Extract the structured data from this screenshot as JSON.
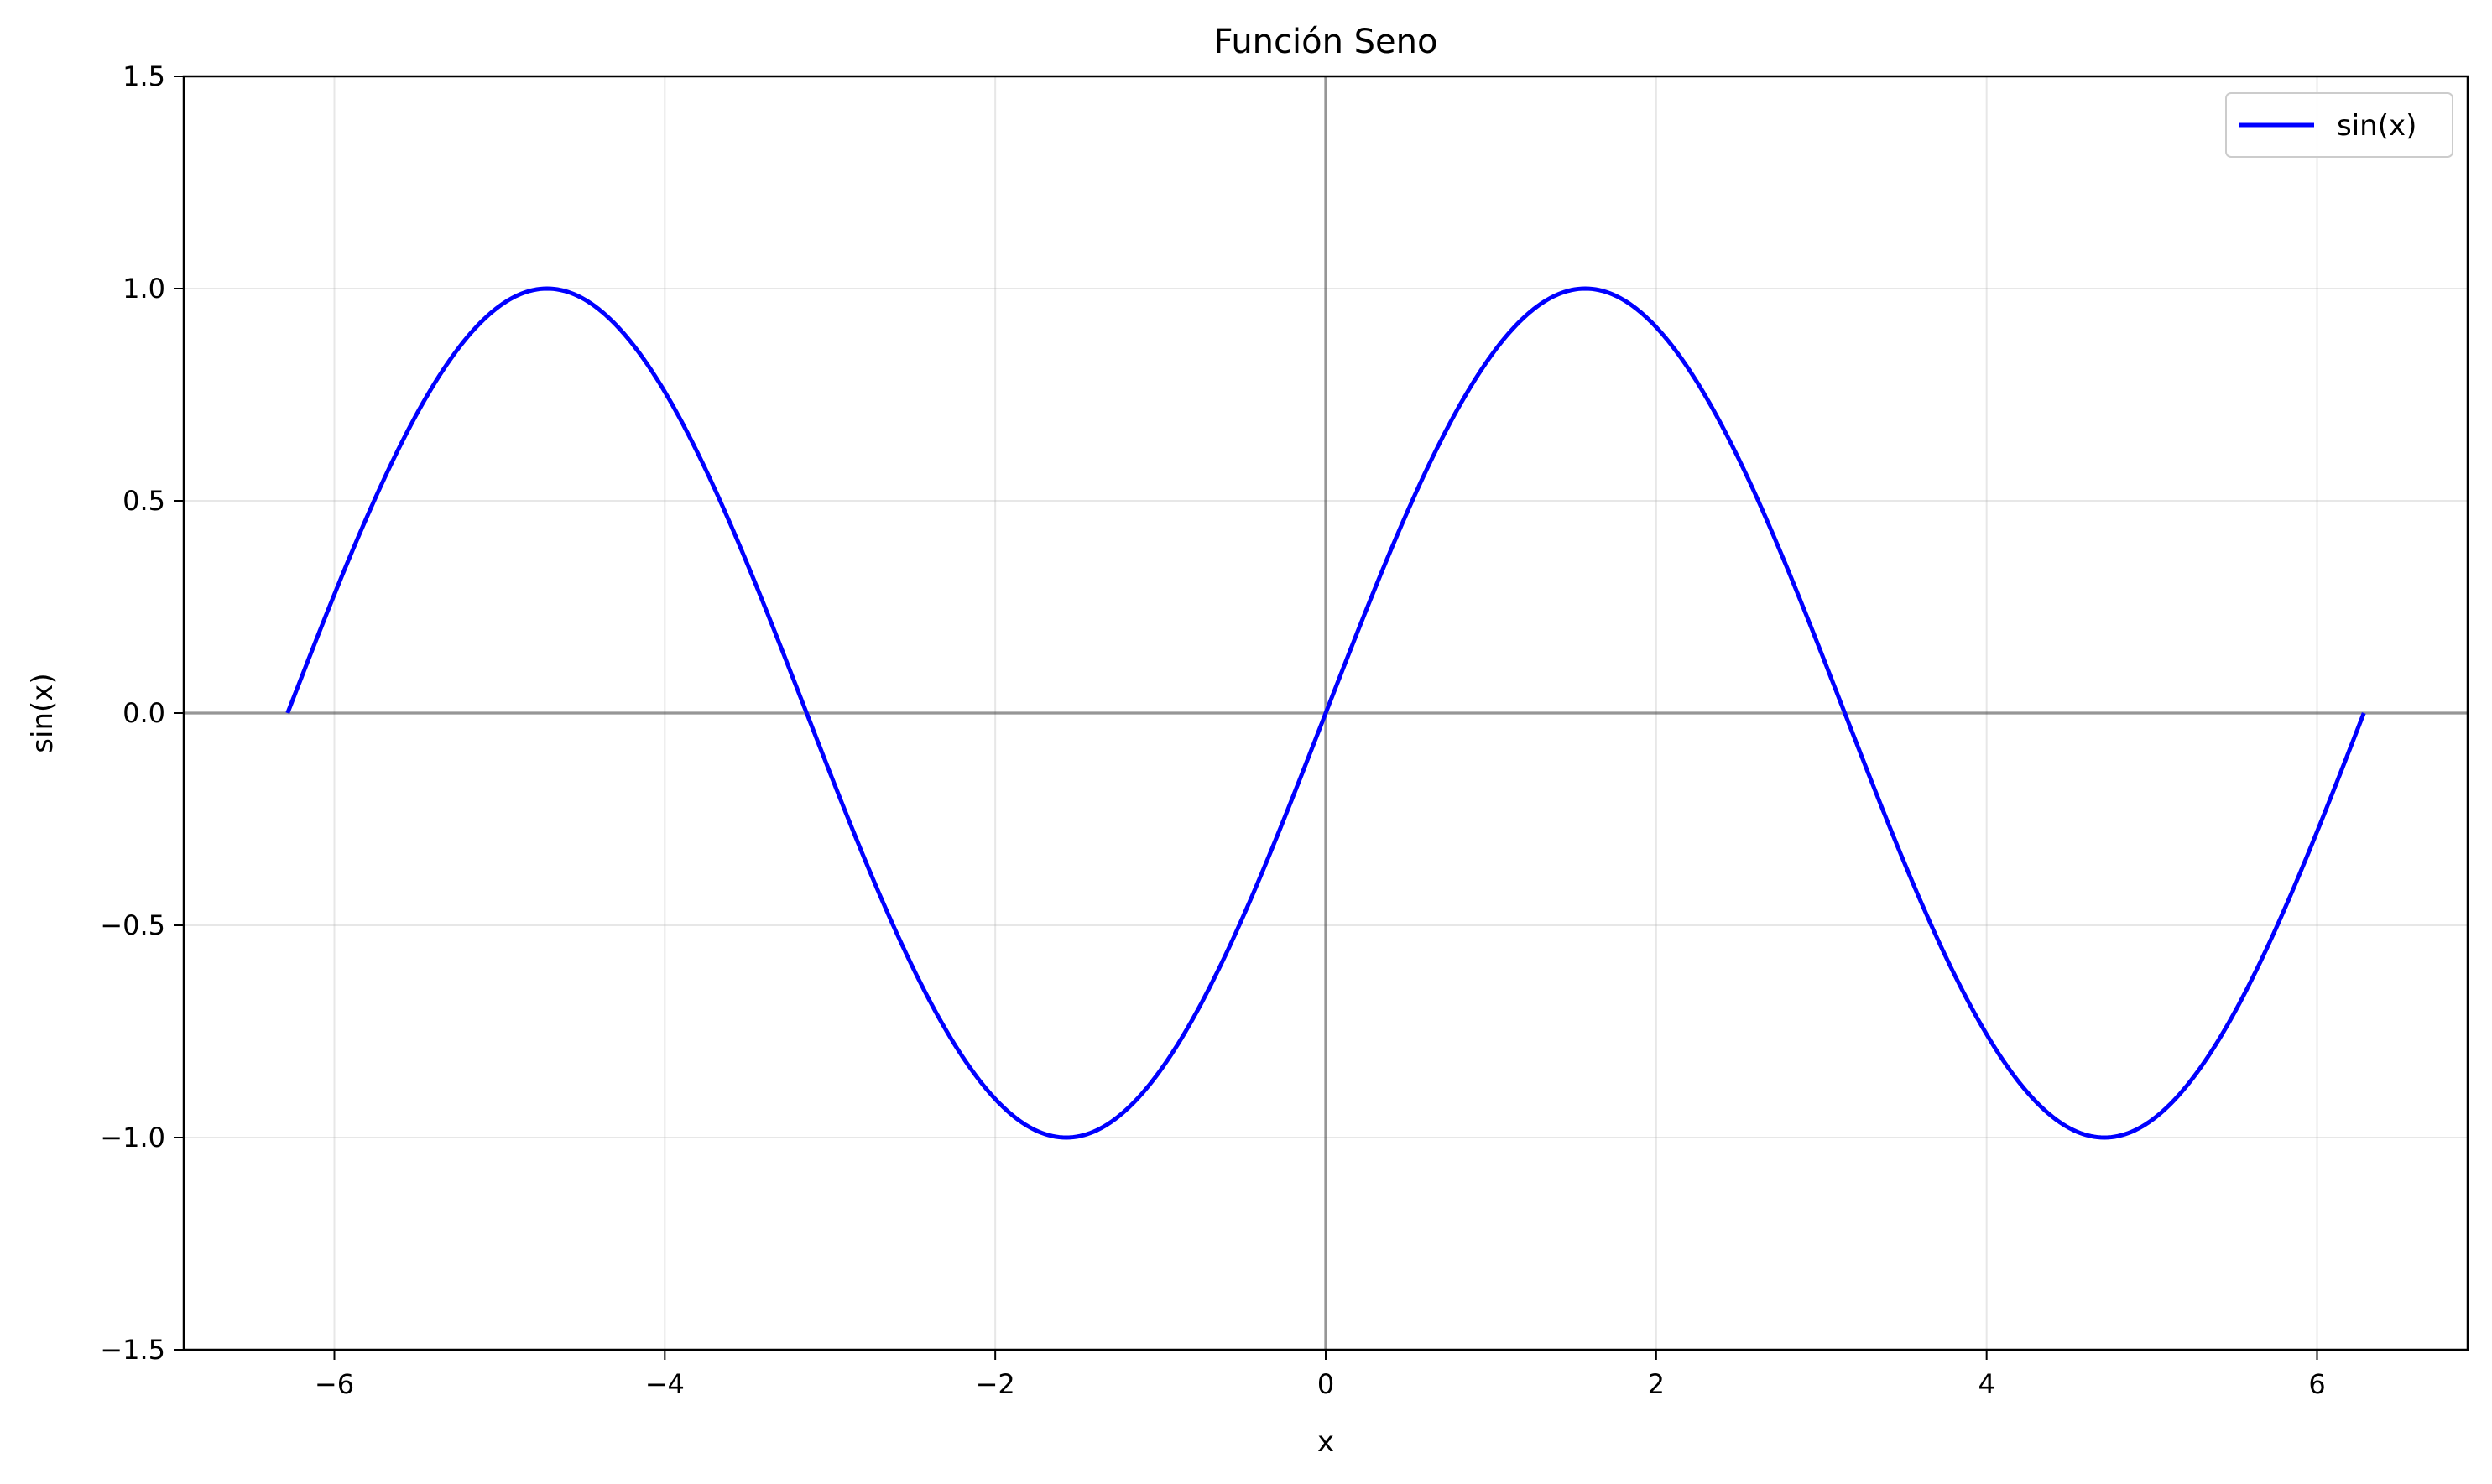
{
  "chart_data": {
    "type": "line",
    "title": "Función Seno",
    "xlabel": "x",
    "ylabel": "sin(x)",
    "xlim": [
      -6.9115,
      6.9115
    ],
    "ylim": [
      -1.5,
      1.5
    ],
    "xticks": [
      -6,
      -4,
      -2,
      0,
      2,
      4,
      6
    ],
    "xtick_labels": [
      "−6",
      "−4",
      "−2",
      "0",
      "2",
      "4",
      "6"
    ],
    "yticks": [
      -1.5,
      -1.0,
      -0.5,
      0.0,
      0.5,
      1.0,
      1.5
    ],
    "ytick_labels": [
      "−1.5",
      "−1.0",
      "−0.5",
      "0.0",
      "0.5",
      "1.0",
      "1.5"
    ],
    "grid": true,
    "reference_lines": {
      "x": 0,
      "y": 0
    },
    "legend_position": "top-right",
    "series": [
      {
        "name": "sin(x)",
        "color": "#0000ff",
        "function": "sin",
        "x_range": [
          -6.2832,
          6.2832
        ]
      }
    ]
  }
}
